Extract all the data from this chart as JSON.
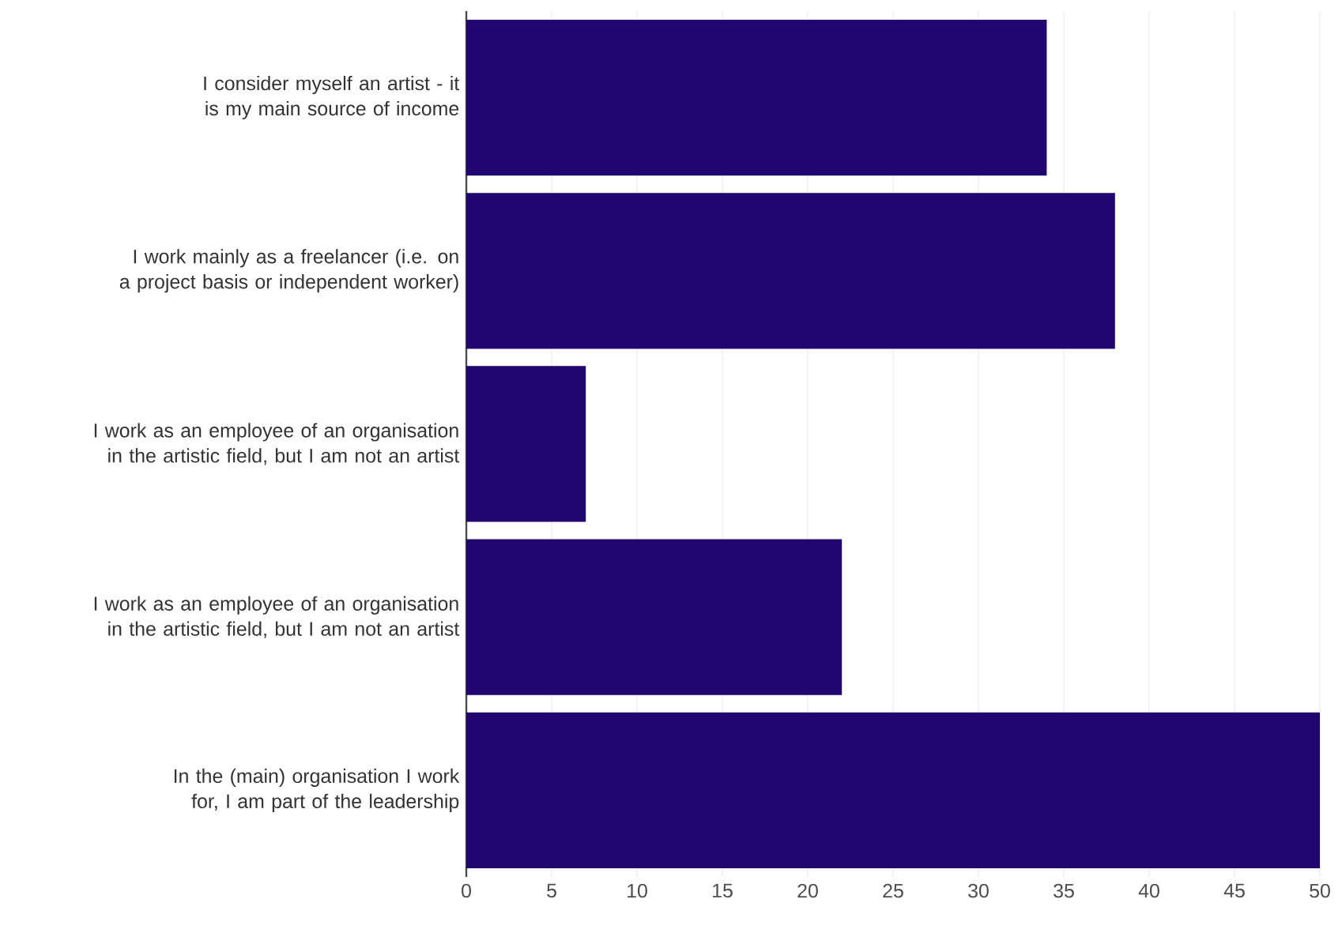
{
  "chart_data": {
    "type": "bar",
    "orientation": "horizontal",
    "categories": [
      "I consider myself an artist - it is my main source of income",
      "I work mainly as a freelancer (i.e. on a project basis or independent worker)",
      "I work as an employee of an organisation in the artistic field, but I am not an artist",
      "I work as an employee of an organisation in the artistic field, but I am not an artist",
      "In the (main) organisation I work for, I am part of the leadership"
    ],
    "values": [
      34,
      38,
      7,
      22,
      50
    ],
    "color": "#22066f",
    "xlim": [
      0,
      50
    ],
    "xticks": [
      0,
      5,
      10,
      15,
      20,
      25,
      30,
      35,
      40,
      45,
      50
    ],
    "grid": "x"
  }
}
